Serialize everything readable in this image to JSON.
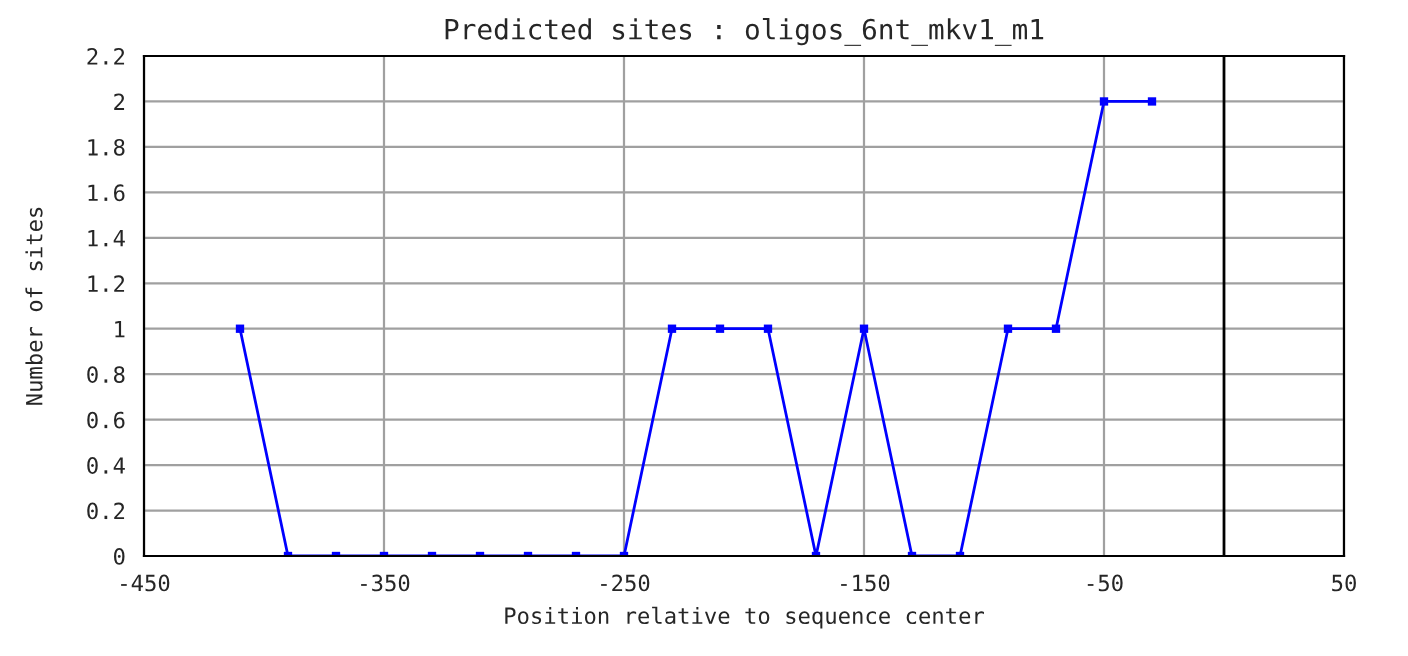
{
  "chart_data": {
    "type": "line",
    "title": "Predicted sites : oligos_6nt_mkv1_m1",
    "xlabel": "Position relative to sequence center",
    "ylabel": "Number of sites",
    "x": [
      -410,
      -390,
      -370,
      -350,
      -330,
      -310,
      -290,
      -270,
      -250,
      -230,
      -210,
      -190,
      -170,
      -150,
      -130,
      -110,
      -90,
      -70,
      -50,
      -30
    ],
    "series": [
      {
        "color": "#0000ff",
        "values": [
          1,
          0,
          0,
          0,
          0,
          0,
          0,
          0,
          0,
          1,
          1,
          1,
          0,
          1,
          0,
          0,
          1,
          1,
          2,
          2
        ]
      }
    ],
    "xlim": [
      -450,
      50
    ],
    "xticks": [
      -450,
      -350,
      -250,
      -150,
      -50,
      50
    ],
    "ylim": [
      0,
      2.2
    ],
    "yticks": [
      0,
      0.2,
      0.4,
      0.6,
      0.8,
      1,
      1.2,
      1.4,
      1.6,
      1.8,
      2,
      2.2
    ],
    "ref_lines": [
      {
        "axis": "x",
        "value": 0,
        "color": "#000000"
      }
    ],
    "grid": true,
    "marker": "square",
    "line_style": "solid",
    "legend": false
  }
}
